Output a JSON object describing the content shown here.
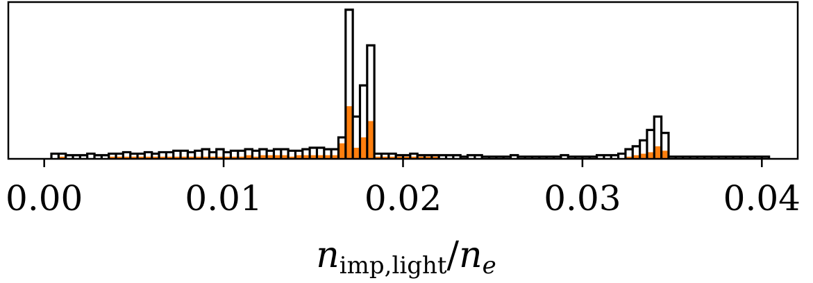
{
  "chart_data": {
    "type": "histogram",
    "title": "",
    "xlabel": {
      "base": "n",
      "subscript": "imp,light",
      "sep": "/",
      "base2": "n",
      "subscript2": "e"
    },
    "ylabel": "",
    "xlim": [
      -0.002,
      0.042
    ],
    "ylim": [
      0,
      1.0
    ],
    "xticks": [
      0.0,
      0.01,
      0.02,
      0.03,
      0.04
    ],
    "xtick_labels": [
      "0.00",
      "0.01",
      "0.02",
      "0.03",
      "0.04"
    ],
    "yticks_shown": false,
    "grid": false,
    "legend": "none",
    "bin_width": 0.0004,
    "bin_start": 0.0004,
    "series": [
      {
        "style": "step-outline",
        "color": "#000000",
        "values": [
          0.03,
          0.03,
          0.02,
          0.02,
          0.02,
          0.03,
          0.02,
          0.02,
          0.03,
          0.03,
          0.04,
          0.03,
          0.03,
          0.04,
          0.03,
          0.04,
          0.04,
          0.05,
          0.05,
          0.04,
          0.05,
          0.06,
          0.04,
          0.06,
          0.04,
          0.05,
          0.05,
          0.06,
          0.05,
          0.06,
          0.05,
          0.06,
          0.06,
          0.05,
          0.05,
          0.06,
          0.07,
          0.07,
          0.06,
          0.06,
          0.14,
          1.0,
          0.28,
          0.49,
          0.76,
          0.03,
          0.03,
          0.03,
          0.02,
          0.02,
          0.03,
          0.02,
          0.02,
          0.02,
          0.02,
          0.02,
          0.02,
          0.01,
          0.02,
          0.02,
          0.01,
          0.01,
          0.01,
          0.01,
          0.02,
          0.01,
          0.01,
          0.01,
          0.01,
          0.01,
          0.01,
          0.02,
          0.01,
          0.01,
          0.01,
          0.01,
          0.02,
          0.02,
          0.02,
          0.03,
          0.06,
          0.08,
          0.12,
          0.19,
          0.28,
          0.17,
          0.01,
          0.01,
          0.01,
          0.01,
          0.01,
          0.01,
          0.01,
          0.01,
          0.01,
          0.01,
          0.01,
          0.01,
          0.01,
          0.01
        ]
      },
      {
        "style": "filled",
        "color": "#ff7f0e",
        "values": [
          0.0,
          0.01,
          0.0,
          0.0,
          0.0,
          0.0,
          0.0,
          0.0,
          0.01,
          0.01,
          0.01,
          0.01,
          0.01,
          0.01,
          0.01,
          0.01,
          0.01,
          0.01,
          0.01,
          0.01,
          0.01,
          0.01,
          0.01,
          0.01,
          0.01,
          0.01,
          0.01,
          0.02,
          0.01,
          0.02,
          0.02,
          0.02,
          0.02,
          0.01,
          0.02,
          0.02,
          0.02,
          0.02,
          0.02,
          0.02,
          0.1,
          0.35,
          0.07,
          0.14,
          0.25,
          0.01,
          0.01,
          0.01,
          0.01,
          0.01,
          0.01,
          0.01,
          0.01,
          0.01,
          0.0,
          0.0,
          0.0,
          0.0,
          0.0,
          0.0,
          0.0,
          0.0,
          0.0,
          0.0,
          0.0,
          0.0,
          0.0,
          0.0,
          0.0,
          0.0,
          0.0,
          0.0,
          0.0,
          0.0,
          0.0,
          0.0,
          0.0,
          0.0,
          0.0,
          0.0,
          0.01,
          0.02,
          0.03,
          0.04,
          0.08,
          0.05,
          0.0,
          0.0,
          0.0,
          0.0,
          0.0,
          0.0,
          0.0,
          0.0,
          0.0,
          0.0,
          0.0,
          0.0,
          0.0,
          0.0
        ]
      }
    ]
  }
}
